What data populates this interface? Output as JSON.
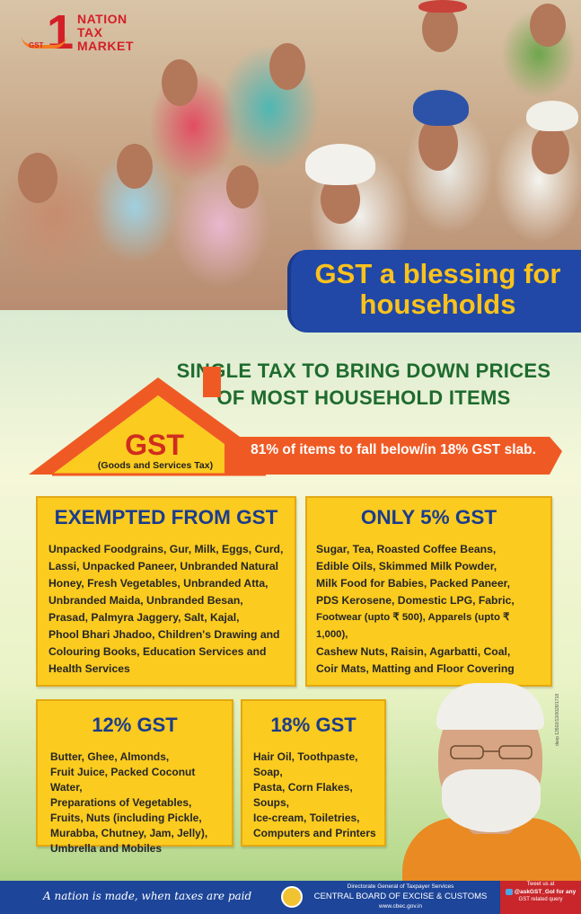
{
  "brand": {
    "logo_numeral": "1",
    "logo_lines": [
      "NATION",
      "TAX",
      "MARKET"
    ],
    "logo_gst": "GST"
  },
  "banner": {
    "line1": "GST a blessing for",
    "line2": "households"
  },
  "headline": {
    "line1": "SINGLE TAX TO BRING DOWN PRICES",
    "line2": "OF MOST HOUSEHOLD ITEMS"
  },
  "house": {
    "gst": "GST",
    "gst_full": "(Goods and Services Tax)",
    "strip_text": "81% of items to fall below/in 18% GST slab."
  },
  "boxes": {
    "exempted": {
      "title": "EXEMPTED FROM GST",
      "lines": [
        "Unpacked Foodgrains, Gur, Milk, Eggs, Curd,",
        "Lassi, Unpacked Paneer, Unbranded Natural",
        "Honey, Fresh Vegetables, Unbranded Atta,",
        "Unbranded Maida, Unbranded Besan,",
        "Prasad, Palmyra Jaggery, Salt, Kajal,",
        "Phool Bhari Jhadoo, Children's Drawing and",
        "Colouring Books, Education Services and",
        "Health Services"
      ]
    },
    "five": {
      "title": "ONLY 5% GST",
      "lines": [
        "Sugar, Tea, Roasted Coffee Beans,",
        "Edible Oils, Skimmed Milk Powder,",
        "Milk Food for Babies, Packed Paneer,",
        "PDS Kerosene, Domestic LPG, Fabric,",
        "Footwear (upto ₹ 500), Apparels (upto ₹ 1,000),",
        "Cashew Nuts, Raisin, Agarbatti, Coal,",
        "Coir Mats, Matting and Floor Covering"
      ]
    },
    "twelve": {
      "title": "12% GST",
      "lines": [
        "Butter, Ghee, Almonds,",
        "Fruit Juice, Packed Coconut Water,",
        "Preparations of Vegetables,",
        "Fruits, Nuts (including Pickle,",
        "Murabba, Chutney, Jam, Jelly),",
        "Umbrella and Mobiles"
      ]
    },
    "eighteen": {
      "title": "18% GST",
      "lines": [
        "Hair Oil, Toothpaste, Soap,",
        "Pasta, Corn Flakes, Soups,",
        "Ice-cream, Toiletries,",
        "Computers and Printers"
      ]
    }
  },
  "side_code": "davp 13502/13/0028/1718",
  "footer": {
    "tagline": "A nation is made, when taxes are paid",
    "dept_top": "Directorate General of Taxpayer Services",
    "dept_main": "CENTRAL BOARD OF EXCISE & CUSTOMS",
    "dept_web": "www.cbec.gov.in",
    "tweet_line1": "Tweet us at",
    "tweet_handle": "@askGST_GoI for any",
    "tweet_line3": "GST related query"
  },
  "colors": {
    "banner_blue": "#2148a6",
    "banner_text": "#fbc21c",
    "headline_green": "#1e6b2e",
    "roof_orange": "#ef5a24",
    "box_yellow": "#fbcb1f",
    "box_title_blue": "#1b3c8c",
    "footer_blue": "#1d4599",
    "tweet_red": "#c8262b"
  }
}
